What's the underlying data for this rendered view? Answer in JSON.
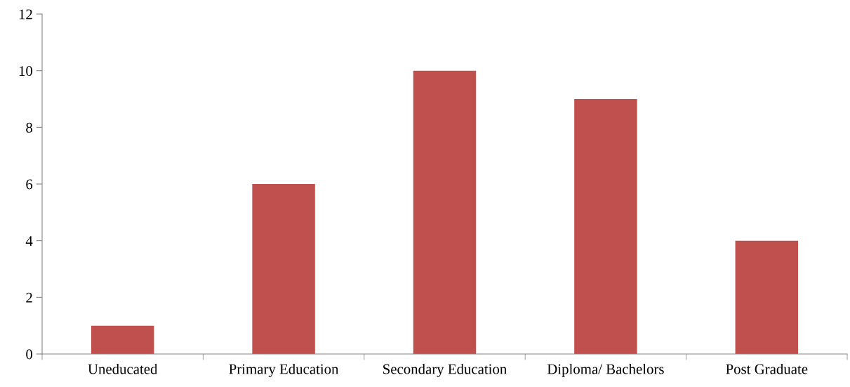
{
  "chart_data": {
    "type": "bar",
    "categories": [
      "Uneducated",
      "Primary Education",
      "Secondary Education",
      "Diploma/ Bachelors",
      "Post Graduate"
    ],
    "values": [
      1,
      6,
      10,
      9,
      4
    ],
    "color": "#c0504d",
    "ylim": [
      0,
      12
    ],
    "yticks": [
      0,
      2,
      4,
      6,
      8,
      10,
      12
    ],
    "grid": false,
    "legend": false
  }
}
